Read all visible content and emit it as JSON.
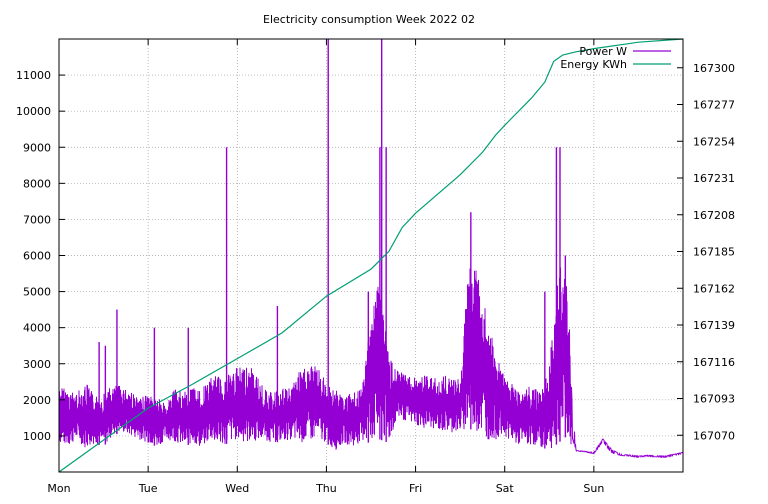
{
  "chart_data": {
    "type": "line",
    "title": "Electricity consumption Week 2022 02",
    "xlabel": "",
    "ylabel": "",
    "y2label": "",
    "x_range": [
      0,
      7
    ],
    "ylim": [
      0,
      12000
    ],
    "y2lim": [
      167047,
      167318
    ],
    "x_ticks": [
      {
        "value": 0,
        "label": "Mon"
      },
      {
        "value": 1,
        "label": "Tue"
      },
      {
        "value": 2,
        "label": "Wed"
      },
      {
        "value": 3,
        "label": "Thu"
      },
      {
        "value": 4,
        "label": "Fri"
      },
      {
        "value": 5,
        "label": "Sat"
      },
      {
        "value": 6,
        "label": "Sun"
      }
    ],
    "y_ticks": [
      1000,
      2000,
      3000,
      4000,
      5000,
      6000,
      7000,
      8000,
      9000,
      10000,
      11000
    ],
    "y2_ticks": [
      167070,
      167093,
      167116,
      167139,
      167162,
      167185,
      167208,
      167231,
      167254,
      167277,
      167300
    ],
    "grid": true,
    "legend_position": "top-right",
    "series": [
      {
        "name": "Power W",
        "axis": "left",
        "color": "#9400d3",
        "style": "dense-spiky",
        "x": [
          0,
          0.1,
          0.2,
          0.3,
          0.4,
          0.5,
          0.6,
          0.7,
          0.8,
          0.9,
          1.0,
          1.1,
          1.2,
          1.3,
          1.4,
          1.5,
          1.6,
          1.7,
          1.8,
          1.9,
          2.0,
          2.1,
          2.2,
          2.3,
          2.4,
          2.5,
          2.6,
          2.7,
          2.8,
          2.9,
          3.0,
          3.1,
          3.2,
          3.3,
          3.4,
          3.5,
          3.6,
          3.7,
          3.8,
          3.9,
          4.0,
          4.1,
          4.2,
          4.3,
          4.4,
          4.5,
          4.6,
          4.7,
          4.8,
          4.9,
          5.0,
          5.1,
          5.2,
          5.3,
          5.4,
          5.5,
          5.6,
          5.7,
          5.75,
          5.8,
          5.9,
          6.0,
          6.1,
          6.2,
          6.3,
          6.4,
          6.5,
          6.6,
          6.7,
          6.8,
          6.9,
          7.0
        ],
        "low": [
          800,
          700,
          900,
          650,
          800,
          700,
          1000,
          1100,
          1000,
          900,
          800,
          700,
          900,
          850,
          700,
          800,
          650,
          900,
          700,
          800,
          900,
          800,
          850,
          900,
          800,
          850,
          900,
          800,
          850,
          900,
          800,
          600,
          800,
          700,
          850,
          800,
          900,
          800,
          1500,
          1400,
          1300,
          1200,
          1200,
          1100,
          1100,
          1100,
          1200,
          1100,
          900,
          900,
          1000,
          800,
          700,
          750,
          700,
          600,
          800,
          1000,
          650,
          580,
          550,
          500,
          800,
          500,
          450,
          430,
          400,
          430,
          410,
          400,
          450,
          500
        ],
        "high": [
          2400,
          2300,
          2200,
          2500,
          2100,
          2200,
          2400,
          2400,
          2300,
          2000,
          2200,
          2100,
          1900,
          2300,
          2200,
          2400,
          2300,
          2600,
          2700,
          2800,
          2900,
          3000,
          2800,
          2300,
          2200,
          2300,
          2400,
          2800,
          3000,
          2900,
          2500,
          2300,
          2100,
          2200,
          2300,
          4500,
          5600,
          3200,
          2800,
          2700,
          2600,
          2700,
          2600,
          2700,
          2600,
          2600,
          5800,
          5600,
          4300,
          3300,
          2600,
          2400,
          2300,
          2400,
          2200,
          2900,
          5800,
          5700,
          2500,
          600,
          580,
          550,
          950,
          650,
          500,
          480,
          450,
          470,
          460,
          450,
          500,
          560
        ],
        "spikes": [
          {
            "x": 0.45,
            "y": 3600
          },
          {
            "x": 0.52,
            "y": 3500
          },
          {
            "x": 0.65,
            "y": 4500
          },
          {
            "x": 1.07,
            "y": 4000
          },
          {
            "x": 1.45,
            "y": 4000
          },
          {
            "x": 1.88,
            "y": 9000
          },
          {
            "x": 2.45,
            "y": 4600
          },
          {
            "x": 3.02,
            "y": 12000
          },
          {
            "x": 3.47,
            "y": 5000
          },
          {
            "x": 3.6,
            "y": 9000
          },
          {
            "x": 3.62,
            "y": 12000
          },
          {
            "x": 3.67,
            "y": 9000
          },
          {
            "x": 4.62,
            "y": 7200
          },
          {
            "x": 5.45,
            "y": 5000
          },
          {
            "x": 5.58,
            "y": 9000
          },
          {
            "x": 5.62,
            "y": 9000
          },
          {
            "x": 5.68,
            "y": 6000
          }
        ]
      },
      {
        "name": "Energy KWh",
        "axis": "right",
        "color": "#009e73",
        "style": "line",
        "x": [
          0,
          0.5,
          1.0,
          1.5,
          2.0,
          2.5,
          3.0,
          3.5,
          3.7,
          3.85,
          4.0,
          4.5,
          4.75,
          4.9,
          5.0,
          5.3,
          5.45,
          5.55,
          5.65,
          5.8,
          6.0,
          6.5,
          7.0
        ],
        "y": [
          167047,
          167067,
          167087,
          167102,
          167118,
          167134,
          167157,
          167174,
          167185,
          167200,
          167209,
          167233,
          167247,
          167258,
          167264,
          167281,
          167291,
          167304,
          167308,
          167310,
          167312,
          167316,
          167318
        ]
      }
    ]
  }
}
